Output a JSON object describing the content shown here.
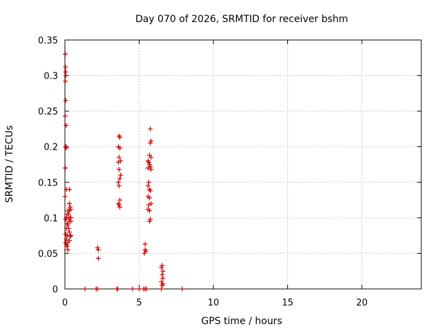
{
  "chart_data": {
    "type": "scatter",
    "title": "Day 070 of 2026, SRMTID for receiver bshm",
    "xlabel": "GPS time / hours",
    "ylabel": "SRMTID / TECUs",
    "xlim": [
      0,
      24
    ],
    "ylim": [
      0,
      0.35
    ],
    "x_ticks": [
      0,
      5,
      10,
      15,
      20
    ],
    "x_tick_labels": [
      "0",
      "5",
      "10",
      "15",
      "20"
    ],
    "y_ticks": [
      0,
      0.05,
      0.1,
      0.15,
      0.2,
      0.25,
      0.3,
      0.35
    ],
    "y_tick_labels": [
      "0",
      "0.05",
      "0.1",
      "0.15",
      "0.2",
      "0.25",
      "0.3",
      "0.35"
    ],
    "grid": true,
    "legend": "none",
    "marker": "plus",
    "color": "#cc0000",
    "points": [
      [
        0.03,
        0.33
      ],
      [
        0.04,
        0.312
      ],
      [
        0.05,
        0.305
      ],
      [
        0.06,
        0.3
      ],
      [
        0.03,
        0.292
      ],
      [
        0.05,
        0.265
      ],
      [
        0.02,
        0.243
      ],
      [
        0.08,
        0.23
      ],
      [
        0.05,
        0.2
      ],
      [
        0.08,
        0.2
      ],
      [
        0.1,
        0.198
      ],
      [
        0.03,
        0.17
      ],
      [
        0.1,
        0.14
      ],
      [
        0.3,
        0.14
      ],
      [
        0.02,
        0.13
      ],
      [
        0.3,
        0.12
      ],
      [
        0.35,
        0.115
      ],
      [
        0.3,
        0.11
      ],
      [
        0.38,
        0.112
      ],
      [
        0.25,
        0.105
      ],
      [
        0.35,
        0.1
      ],
      [
        0.3,
        0.095
      ],
      [
        0.1,
        0.1
      ],
      [
        0.05,
        0.098
      ],
      [
        0.15,
        0.092
      ],
      [
        0.2,
        0.09
      ],
      [
        0.1,
        0.085
      ],
      [
        0.25,
        0.085
      ],
      [
        0.3,
        0.08
      ],
      [
        0.05,
        0.077
      ],
      [
        0.15,
        0.075
      ],
      [
        0.35,
        0.074
      ],
      [
        0.1,
        0.07
      ],
      [
        0.3,
        0.068
      ],
      [
        0.2,
        0.065
      ],
      [
        0.1,
        0.062
      ],
      [
        0.15,
        0.06
      ],
      [
        0.05,
        0.065
      ],
      [
        0.2,
        0.055
      ],
      [
        0.4,
        0.1
      ],
      [
        0.4,
        0.095
      ],
      [
        0.25,
        0.1
      ],
      [
        0.2,
        0.11
      ],
      [
        0.15,
        0.105
      ],
      [
        0.4,
        0.075
      ],
      [
        1.35,
        0
      ],
      [
        2.1,
        0
      ],
      [
        2.2,
        0
      ],
      [
        2.2,
        0.058
      ],
      [
        2.25,
        0.055
      ],
      [
        2.25,
        0.043
      ],
      [
        3.5,
        0
      ],
      [
        3.55,
        0
      ],
      [
        3.65,
        0.215
      ],
      [
        3.7,
        0.213
      ],
      [
        3.6,
        0.2
      ],
      [
        3.7,
        0.198
      ],
      [
        3.65,
        0.185
      ],
      [
        3.75,
        0.18
      ],
      [
        3.6,
        0.178
      ],
      [
        3.65,
        0.168
      ],
      [
        3.75,
        0.16
      ],
      [
        3.7,
        0.155
      ],
      [
        3.6,
        0.15
      ],
      [
        3.65,
        0.145
      ],
      [
        3.7,
        0.125
      ],
      [
        3.6,
        0.12
      ],
      [
        3.65,
        0.118
      ],
      [
        3.7,
        0.115
      ],
      [
        4.55,
        0
      ],
      [
        5.0,
        0
      ],
      [
        5.3,
        0
      ],
      [
        5.4,
        0
      ],
      [
        5.5,
        0
      ],
      [
        5.35,
        0.05
      ],
      [
        5.4,
        0.055
      ],
      [
        5.45,
        0.053
      ],
      [
        5.4,
        0.063
      ],
      [
        5.75,
        0.225
      ],
      [
        5.8,
        0.208
      ],
      [
        5.75,
        0.205
      ],
      [
        5.7,
        0.188
      ],
      [
        5.8,
        0.185
      ],
      [
        5.6,
        0.18
      ],
      [
        5.65,
        0.178
      ],
      [
        5.7,
        0.175
      ],
      [
        5.75,
        0.172
      ],
      [
        5.6,
        0.17
      ],
      [
        5.8,
        0.168
      ],
      [
        5.65,
        0.15
      ],
      [
        5.6,
        0.145
      ],
      [
        5.7,
        0.14
      ],
      [
        5.75,
        0.138
      ],
      [
        5.6,
        0.13
      ],
      [
        5.7,
        0.128
      ],
      [
        5.8,
        0.12
      ],
      [
        5.65,
        0.118
      ],
      [
        5.6,
        0.112
      ],
      [
        5.7,
        0.11
      ],
      [
        5.75,
        0.098
      ],
      [
        5.7,
        0.095
      ],
      [
        6.5,
        0
      ],
      [
        6.55,
        0.005
      ],
      [
        6.6,
        0.007
      ],
      [
        6.5,
        0.01
      ],
      [
        6.6,
        0.015
      ],
      [
        6.55,
        0.02
      ],
      [
        6.6,
        0.025
      ],
      [
        6.5,
        0.03
      ],
      [
        6.55,
        0.033
      ],
      [
        7.9,
        0
      ]
    ]
  }
}
